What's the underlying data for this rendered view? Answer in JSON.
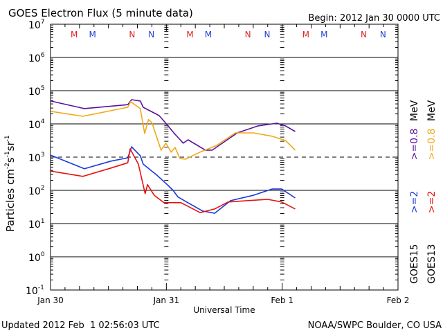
{
  "chart_data": {
    "type": "line",
    "title": "GOES Electron Flux (5 minute data)",
    "begin_label": "Begin: 2012 Jan 30 0000 UTC",
    "xlabel": "Universal Time",
    "ylabel": "Particles cm",
    "ylabel_parts": {
      "base": "Particles cm",
      "e1": "-2",
      "s": "s",
      "e2": "-1",
      "sr": "sr",
      "e3": "-1"
    },
    "x_unit": "hours since 2012-01-30 00:00 UTC",
    "xlim": [
      0,
      72
    ],
    "ylim_log10": [
      -1,
      7
    ],
    "yscale": "log",
    "x_ticks": [
      {
        "h": 0,
        "label": "Jan 30"
      },
      {
        "h": 24,
        "label": "Jan 31"
      },
      {
        "h": 48,
        "label": "Feb 1"
      },
      {
        "h": 72,
        "label": "Feb 2"
      }
    ],
    "y_ticks": [
      {
        "exp": 7,
        "label": "7"
      },
      {
        "exp": 6,
        "label": "6"
      },
      {
        "exp": 5,
        "label": "5"
      },
      {
        "exp": 4,
        "label": "4"
      },
      {
        "exp": 3,
        "label": "3"
      },
      {
        "exp": 2,
        "label": "2"
      },
      {
        "exp": 1,
        "label": "1"
      },
      {
        "exp": 0,
        "label": "0"
      },
      {
        "exp": -1,
        "label": "-1"
      }
    ],
    "threshold_log10": 3,
    "markers": [
      {
        "h": 4.9,
        "label": "M",
        "color": "#e02020"
      },
      {
        "h": 8.7,
        "label": "M",
        "color": "#2040d0"
      },
      {
        "h": 16.9,
        "label": "N",
        "color": "#e02020"
      },
      {
        "h": 20.9,
        "label": "N",
        "color": "#2040d0"
      },
      {
        "h": 28.9,
        "label": "M",
        "color": "#e02020"
      },
      {
        "h": 32.7,
        "label": "M",
        "color": "#2040d0"
      },
      {
        "h": 40.9,
        "label": "N",
        "color": "#e02020"
      },
      {
        "h": 44.9,
        "label": "N",
        "color": "#2040d0"
      },
      {
        "h": 52.9,
        "label": "M",
        "color": "#e02020"
      },
      {
        "h": 56.7,
        "label": "M",
        "color": "#2040d0"
      },
      {
        "h": 64.9,
        "label": "N",
        "color": "#e02020"
      },
      {
        "h": 68.9,
        "label": "N",
        "color": "#2040d0"
      }
    ],
    "series": [
      {
        "name": "GOES15 >=0.8 MeV",
        "color": "#5a10a0",
        "points": [
          [
            0,
            4.69
          ],
          [
            7,
            4.46
          ],
          [
            16,
            4.58
          ],
          [
            16.8,
            4.73
          ],
          [
            18.6,
            4.69
          ],
          [
            19.2,
            4.5
          ],
          [
            22.5,
            4.25
          ],
          [
            23.9,
            4.02
          ],
          [
            25.6,
            3.72
          ],
          [
            27.5,
            3.42
          ],
          [
            28.5,
            3.52
          ],
          [
            32.1,
            3.21
          ],
          [
            33.5,
            3.21
          ],
          [
            38.7,
            3.73
          ],
          [
            43,
            3.94
          ],
          [
            46.9,
            4.02
          ],
          [
            48.7,
            3.94
          ],
          [
            50.7,
            3.77
          ]
        ]
      },
      {
        "name": "GOES13 >=0.8 MeV",
        "color": "#f0a818",
        "points": [
          [
            0,
            4.38
          ],
          [
            6.7,
            4.23
          ],
          [
            16,
            4.5
          ],
          [
            16.6,
            4.67
          ],
          [
            18.6,
            4.46
          ],
          [
            19.5,
            3.71
          ],
          [
            20.3,
            4.13
          ],
          [
            21,
            4.04
          ],
          [
            22.9,
            3.21
          ],
          [
            23.9,
            3.42
          ],
          [
            25,
            3.15
          ],
          [
            25.8,
            3.29
          ],
          [
            26.8,
            2.96
          ],
          [
            28,
            2.94
          ],
          [
            31,
            3.15
          ],
          [
            34.4,
            3.35
          ],
          [
            38.3,
            3.73
          ],
          [
            42,
            3.73
          ],
          [
            45.9,
            3.63
          ],
          [
            48.7,
            3.5
          ],
          [
            50.7,
            3.21
          ]
        ]
      },
      {
        "name": "GOES15 >=2 MeV",
        "color": "#1838d8",
        "points": [
          [
            0,
            3.06
          ],
          [
            7,
            2.65
          ],
          [
            12.5,
            2.88
          ],
          [
            16,
            2.98
          ],
          [
            16.8,
            3.31
          ],
          [
            18.6,
            3.04
          ],
          [
            19.2,
            2.79
          ],
          [
            22,
            2.46
          ],
          [
            24.2,
            2.17
          ],
          [
            25.4,
            2.0
          ],
          [
            26.4,
            1.8
          ],
          [
            28.2,
            1.65
          ],
          [
            31.5,
            1.38
          ],
          [
            34,
            1.31
          ],
          [
            37.3,
            1.69
          ],
          [
            42,
            1.85
          ],
          [
            45.9,
            2.04
          ],
          [
            47.9,
            2.04
          ],
          [
            50.7,
            1.77
          ]
        ]
      },
      {
        "name": "GOES13 >=2 MeV",
        "color": "#e81010",
        "points": [
          [
            0,
            2.58
          ],
          [
            6.7,
            2.42
          ],
          [
            12.5,
            2.67
          ],
          [
            16,
            2.83
          ],
          [
            16.5,
            3.25
          ],
          [
            18.2,
            2.79
          ],
          [
            19.6,
            1.9
          ],
          [
            20.1,
            2.17
          ],
          [
            21.5,
            1.85
          ],
          [
            23.5,
            1.63
          ],
          [
            25.4,
            1.63
          ],
          [
            27,
            1.63
          ],
          [
            31,
            1.33
          ],
          [
            34,
            1.44
          ],
          [
            36.8,
            1.65
          ],
          [
            40.7,
            1.69
          ],
          [
            45,
            1.73
          ],
          [
            47.9,
            1.65
          ],
          [
            50.7,
            1.44
          ]
        ]
      }
    ],
    "legend": {
      "placement": "right",
      "columns": [
        {
          "sat": "GOES15",
          "ch1": ">=2",
          "ch1_color": "#1838d8",
          "ch2": ">=0.8",
          "ch2_color": "#5a10a0",
          "unit": "MeV"
        },
        {
          "sat": "GOES13",
          "ch1": ">=2",
          "ch1_color": "#e81010",
          "ch2": ">=0.8",
          "ch2_color": "#f0a818",
          "unit": "MeV"
        }
      ]
    }
  },
  "footer": {
    "updated": "Updated 2012 Feb  1 02:56:03 UTC",
    "credit": "NOAA/SWPC Boulder, CO USA"
  }
}
